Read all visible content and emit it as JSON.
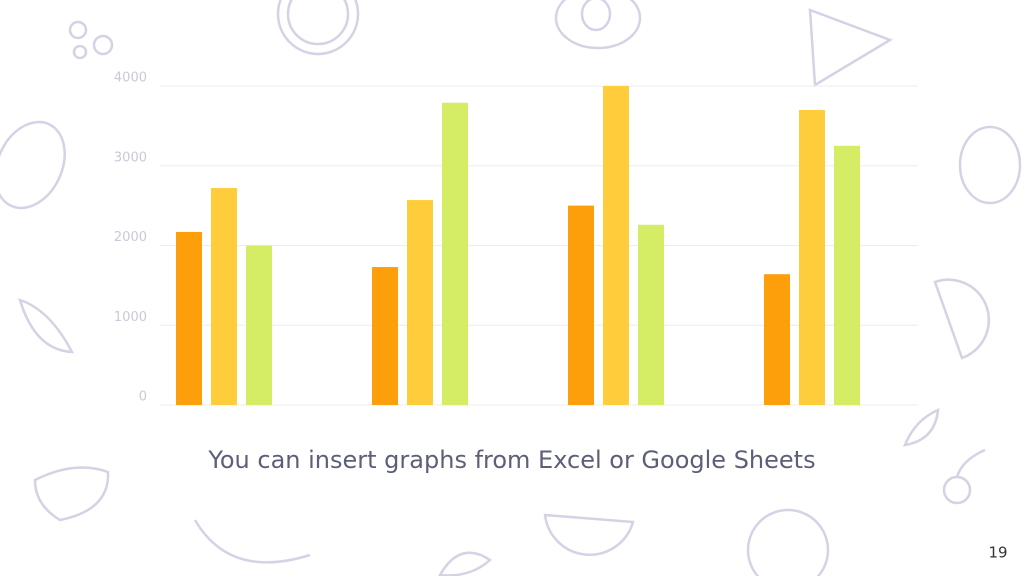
{
  "chart_data": {
    "type": "bar",
    "subtitle": "You can insert graphs from Excel or Google Sheets",
    "categories": [
      null,
      null,
      null,
      null
    ],
    "series": [
      {
        "color": "#fd9e0b",
        "values": [
          2170,
          1730,
          2500,
          1640
        ]
      },
      {
        "color": "#ffcd3c",
        "values": [
          2720,
          2570,
          4000,
          3700
        ]
      },
      {
        "color": "#d4ed64",
        "values": [
          2000,
          3790,
          2260,
          3250
        ]
      }
    ],
    "ylim": [
      0,
      4000
    ],
    "yticks": [
      0,
      1000,
      2000,
      3000,
      4000
    ],
    "grid": true
  },
  "page_number": 19
}
